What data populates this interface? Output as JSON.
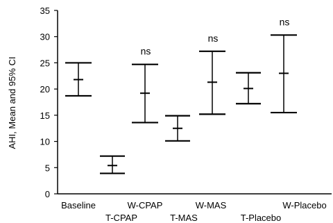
{
  "chart_data": {
    "type": "error_bar",
    "title": "",
    "ylabel": "AHI, Mean and 95% CI",
    "xlabel": "",
    "ylim": [
      0,
      35
    ],
    "yticks": [
      0,
      5,
      10,
      15,
      20,
      25,
      30,
      35
    ],
    "grid": false,
    "categories": [
      "Baseline",
      "T-CPAP",
      "W-CPAP",
      "T-MAS",
      "W-MAS",
      "T-Placebo",
      "W-Placebo"
    ],
    "points": [
      {
        "label": "Baseline",
        "mean": 21.8,
        "lower": 18.7,
        "upper": 25.0,
        "annotation": ""
      },
      {
        "label": "T-CPAP",
        "mean": 5.4,
        "lower": 3.9,
        "upper": 7.2,
        "annotation": ""
      },
      {
        "label": "W-CPAP",
        "mean": 19.2,
        "lower": 13.6,
        "upper": 24.7,
        "annotation": "ns"
      },
      {
        "label": "T-MAS",
        "mean": 12.5,
        "lower": 10.1,
        "upper": 14.9,
        "annotation": ""
      },
      {
        "label": "W-MAS",
        "mean": 21.3,
        "lower": 15.2,
        "upper": 27.2,
        "annotation": "ns"
      },
      {
        "label": "T-Placebo",
        "mean": 20.1,
        "lower": 17.2,
        "upper": 23.1,
        "annotation": ""
      },
      {
        "label": "W-Placebo",
        "mean": 23.0,
        "lower": 15.5,
        "upper": 30.3,
        "annotation": "ns"
      }
    ]
  }
}
